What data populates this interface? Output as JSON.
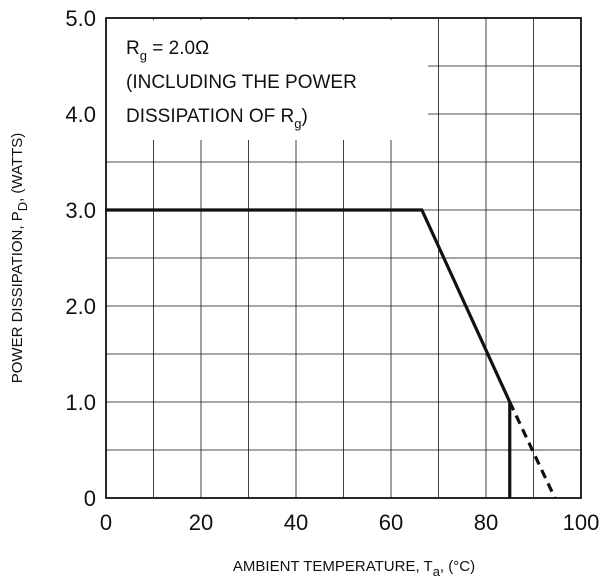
{
  "chart_data": {
    "type": "line",
    "xlabel": "AMBIENT TEMPERATURE, T",
    "xlabel_sub": "a",
    "xlabel_tail": ", (°C)",
    "ylabel": "POWER DISSIPATION, P",
    "ylabel_sub": "D",
    "ylabel_tail": ", (WATTS)",
    "xlim": [
      0,
      100
    ],
    "ylim": [
      0,
      5
    ],
    "x_ticks": [
      {
        "value": 0,
        "label": "0"
      },
      {
        "value": 20,
        "label": "20"
      },
      {
        "value": 40,
        "label": "40"
      },
      {
        "value": 60,
        "label": "60"
      },
      {
        "value": 80,
        "label": "80"
      },
      {
        "value": 100,
        "label": "100"
      }
    ],
    "y_ticks": [
      {
        "value": 0,
        "label": "0"
      },
      {
        "value": 1,
        "label": "1.0"
      },
      {
        "value": 2,
        "label": "2.0"
      },
      {
        "value": 3,
        "label": "3.0"
      },
      {
        "value": 4,
        "label": "4.0"
      },
      {
        "value": 5,
        "label": "5.0"
      }
    ],
    "grid": {
      "x_step": 10,
      "y_step": 0.5,
      "shown": true
    },
    "series": [
      {
        "style": "solid",
        "points": [
          [
            0,
            3.0
          ],
          [
            66.5,
            3.0
          ],
          [
            85,
            1.0
          ]
        ]
      },
      {
        "style": "solid",
        "points": [
          [
            85,
            1.0
          ],
          [
            85,
            0
          ]
        ]
      },
      {
        "style": "dashed",
        "points": [
          [
            85,
            1.0
          ],
          [
            94.5,
            0
          ]
        ]
      }
    ],
    "annotation": {
      "line1_prefix": "R",
      "line1_sub": "g",
      "line1_suffix": " = 2.0Ω",
      "line2": "(INCLUDING THE POWER",
      "line3_prefix": "DISSIPATION OF R",
      "line3_sub": "g",
      "line3_suffix": ")"
    },
    "colors": {
      "line": "#111111",
      "grid": "#111111",
      "background": "#ffffff"
    }
  }
}
